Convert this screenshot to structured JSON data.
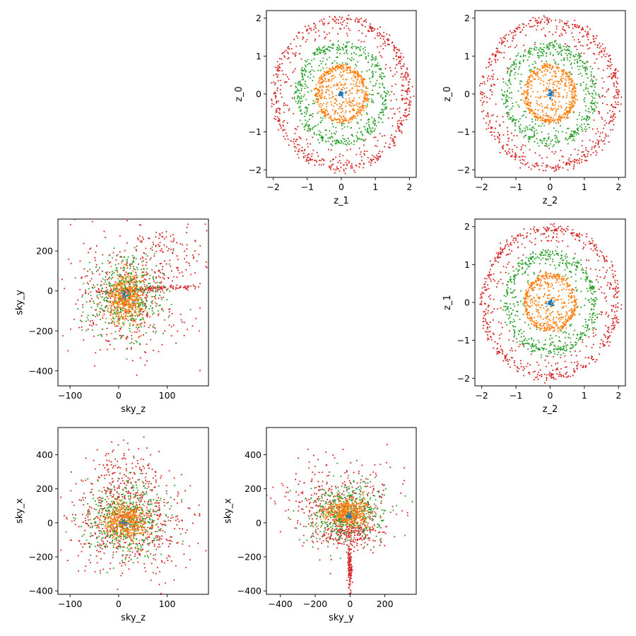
{
  "figure": {
    "description_none": "",
    "colors": {
      "shell_0": "#1f77b4",
      "shell_1": "#ff7f0e",
      "shell_2": "#2ca02c",
      "shell_3": "#d62728",
      "axes": "#000000",
      "background": "#ffffff"
    }
  },
  "chart_data": [
    {
      "id": "panel-z1-z0",
      "type": "scatter",
      "xlabel": "z_1",
      "ylabel": "z_0",
      "xlim": [
        -2.2,
        2.2
      ],
      "ylim": [
        -2.2,
        2.2
      ],
      "xticks": [
        -2,
        -1,
        0,
        1,
        2
      ],
      "yticks": [
        -2,
        -1,
        0,
        1,
        2
      ],
      "xticklabels": [
        "−2",
        "−1",
        "0",
        "1",
        "2"
      ],
      "yticklabels": [
        "−2",
        "−1",
        "0",
        "1",
        "2"
      ],
      "grid": false,
      "series": [
        {
          "shell": "shell_3",
          "count": 650,
          "ring": {
            "radius": 1.97,
            "jitter": 0.06,
            "fill": "rim_and_sparse_inner",
            "inner_min": 1.3
          }
        },
        {
          "shell": "shell_2",
          "count": 550,
          "ring": {
            "radius": 1.3,
            "jitter": 0.06,
            "fill": "rim_and_sparse_inner",
            "inner_min": 0.7
          }
        },
        {
          "shell": "shell_1",
          "count": 550,
          "ring": {
            "radius": 0.72,
            "jitter": 0.04,
            "fill": "rim_and_sparse_inner",
            "inner_min": 0.0
          }
        },
        {
          "shell": "shell_0",
          "count": 40,
          "ring": {
            "radius": 0.1,
            "jitter": 0.03,
            "fill": "full",
            "inner_min": 0.0
          }
        }
      ]
    },
    {
      "id": "panel-z2-z0",
      "type": "scatter",
      "xlabel": "z_2",
      "ylabel": "z_0",
      "xlim": [
        -2.2,
        2.2
      ],
      "ylim": [
        -2.2,
        2.2
      ],
      "xticks": [
        -2,
        -1,
        0,
        1,
        2
      ],
      "yticks": [
        -2,
        -1,
        0,
        1,
        2
      ],
      "xticklabels": [
        "−2",
        "−1",
        "0",
        "1",
        "2"
      ],
      "yticklabels": [
        "−2",
        "−1",
        "0",
        "1",
        "2"
      ],
      "grid": false,
      "series": [
        {
          "shell": "shell_3",
          "count": 650,
          "ring": {
            "radius": 1.97,
            "jitter": 0.06,
            "fill": "rim_and_sparse_inner",
            "inner_min": 1.3
          }
        },
        {
          "shell": "shell_2",
          "count": 550,
          "ring": {
            "radius": 1.3,
            "jitter": 0.06,
            "fill": "rim_and_sparse_inner",
            "inner_min": 0.7
          }
        },
        {
          "shell": "shell_1",
          "count": 550,
          "ring": {
            "radius": 0.72,
            "jitter": 0.04,
            "fill": "rim_and_sparse_inner",
            "inner_min": 0.0
          }
        },
        {
          "shell": "shell_0",
          "count": 40,
          "ring": {
            "radius": 0.1,
            "jitter": 0.03,
            "fill": "full",
            "inner_min": 0.0
          }
        }
      ]
    },
    {
      "id": "panel-z2-z1",
      "type": "scatter",
      "xlabel": "z_2",
      "ylabel": "z_1",
      "xlim": [
        -2.2,
        2.2
      ],
      "ylim": [
        -2.2,
        2.2
      ],
      "xticks": [
        -2,
        -1,
        0,
        1,
        2
      ],
      "yticks": [
        -2,
        -1,
        0,
        1,
        2
      ],
      "xticklabels": [
        "−2",
        "−1",
        "0",
        "1",
        "2"
      ],
      "yticklabels": [
        "−2",
        "−1",
        "0",
        "1",
        "2"
      ],
      "grid": false,
      "series": [
        {
          "shell": "shell_3",
          "count": 650,
          "ring": {
            "radius": 1.97,
            "jitter": 0.06,
            "fill": "rim_and_sparse_inner",
            "inner_min": 1.3
          }
        },
        {
          "shell": "shell_2",
          "count": 550,
          "ring": {
            "radius": 1.3,
            "jitter": 0.06,
            "fill": "rim_and_sparse_inner",
            "inner_min": 0.7
          }
        },
        {
          "shell": "shell_1",
          "count": 550,
          "ring": {
            "radius": 0.72,
            "jitter": 0.04,
            "fill": "rim_and_sparse_inner",
            "inner_min": 0.0
          }
        },
        {
          "shell": "shell_0",
          "count": 40,
          "ring": {
            "radius": 0.1,
            "jitter": 0.03,
            "fill": "full",
            "inner_min": 0.0
          }
        }
      ]
    },
    {
      "id": "panel-skyz-skyy",
      "type": "scatter",
      "xlabel": "sky_z",
      "ylabel": "sky_y",
      "xlim": [
        -125,
        185
      ],
      "ylim": [
        -475,
        360
      ],
      "xticks": [
        -100,
        0,
        100
      ],
      "yticks": [
        -400,
        -200,
        0,
        200
      ],
      "xticklabels": [
        "−100",
        "0",
        "100"
      ],
      "yticklabels": [
        "−400",
        "−200",
        "0",
        "200"
      ],
      "grid": false,
      "clusters": [
        {
          "shell": "shell_3",
          "count": 420,
          "center": [
            20,
            -40
          ],
          "spread": [
            60,
            150
          ]
        },
        {
          "shell": "shell_3",
          "count": 140,
          "center": [
            60,
            10
          ],
          "spread": [
            60,
            6
          ],
          "tilt": 0.14
        },
        {
          "shell": "shell_3",
          "count": 120,
          "center": [
            110,
            180
          ],
          "spread": [
            40,
            80
          ]
        },
        {
          "shell": "shell_2",
          "count": 480,
          "center": [
            15,
            -20
          ],
          "spread": [
            40,
            100
          ]
        },
        {
          "shell": "shell_1",
          "count": 430,
          "center": [
            15,
            -40
          ],
          "spread": [
            20,
            65
          ]
        },
        {
          "shell": "shell_0",
          "count": 20,
          "center": [
            10,
            -20
          ],
          "spread": [
            6,
            10
          ]
        }
      ]
    },
    {
      "id": "panel-skyz-skyx",
      "type": "scatter",
      "xlabel": "sky_z",
      "ylabel": "sky_x",
      "xlim": [
        -125,
        185
      ],
      "ylim": [
        -420,
        560
      ],
      "xticks": [
        -100,
        0,
        100
      ],
      "yticks": [
        -400,
        -200,
        0,
        200,
        400
      ],
      "xticklabels": [
        "−100",
        "0",
        "100"
      ],
      "yticklabels": [
        "−400",
        "−200",
        "0",
        "200",
        "400"
      ],
      "grid": false,
      "clusters": [
        {
          "shell": "shell_3",
          "count": 620,
          "center": [
            20,
            0
          ],
          "spread": [
            65,
            150
          ]
        },
        {
          "shell": "shell_3",
          "count": 120,
          "center": [
            10,
            300
          ],
          "spread": [
            40,
            90
          ]
        },
        {
          "shell": "shell_2",
          "count": 480,
          "center": [
            15,
            20
          ],
          "spread": [
            40,
            110
          ]
        },
        {
          "shell": "shell_1",
          "count": 430,
          "center": [
            15,
            10
          ],
          "spread": [
            22,
            55
          ]
        },
        {
          "shell": "shell_0",
          "count": 20,
          "center": [
            10,
            0
          ],
          "spread": [
            6,
            10
          ]
        }
      ]
    },
    {
      "id": "panel-skyy-skyx",
      "type": "scatter",
      "xlabel": "sky_y",
      "ylabel": "sky_x",
      "xlim": [
        -480,
        380
      ],
      "ylim": [
        -420,
        560
      ],
      "xticks": [
        -400,
        -200,
        0,
        200
      ],
      "yticks": [
        -400,
        -200,
        0,
        200,
        400
      ],
      "xticklabels": [
        "−400",
        "−200",
        "0",
        "200"
      ],
      "yticklabels": [
        "−400",
        "−200",
        "0",
        "200",
        "400"
      ],
      "grid": false,
      "clusters": [
        {
          "shell": "shell_3",
          "count": 380,
          "center": [
            -80,
            120
          ],
          "spread": [
            170,
            120
          ]
        },
        {
          "shell": "shell_3",
          "count": 220,
          "center": [
            0,
            -60
          ],
          "spread": [
            90,
            40
          ]
        },
        {
          "shell": "shell_3",
          "count": 120,
          "center": [
            0,
            -250
          ],
          "spread": [
            6,
            80
          ]
        },
        {
          "shell": "shell_2",
          "count": 480,
          "center": [
            -20,
            60
          ],
          "spread": [
            110,
            90
          ]
        },
        {
          "shell": "shell_1",
          "count": 430,
          "center": [
            -10,
            60
          ],
          "spread": [
            65,
            40
          ]
        },
        {
          "shell": "shell_0",
          "count": 20,
          "center": [
            -10,
            40
          ],
          "spread": [
            10,
            8
          ]
        }
      ]
    }
  ]
}
